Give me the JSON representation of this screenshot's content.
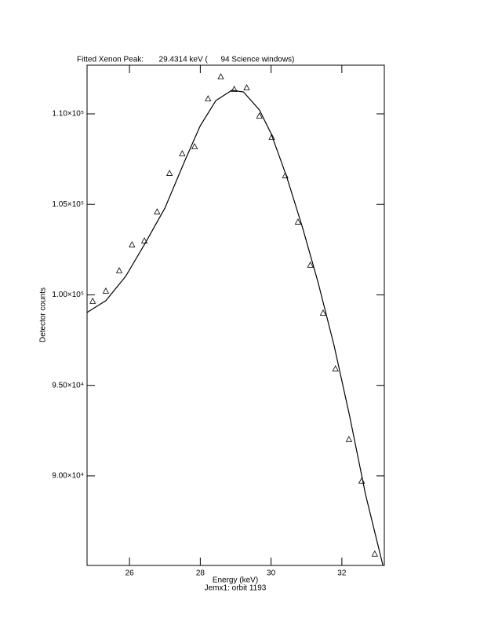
{
  "chart_data": {
    "type": "scatter",
    "title": "Fitted Xenon Peak:       29.4314 keV (      94 Science windows)",
    "xlabel": "Energy (keV)",
    "ylabel": "Detector counts",
    "annotation": "Jemx1: orbit 1193",
    "xlim": [
      24.8,
      33.2
    ],
    "ylim": [
      85050,
      112690
    ],
    "xticks": [
      26,
      28,
      30,
      32
    ],
    "yticks": [
      {
        "value": 90000,
        "label": "9.00×10⁴"
      },
      {
        "value": 95000,
        "label": "9.50×10⁴"
      },
      {
        "value": 100000,
        "label": "1.00×10⁵"
      },
      {
        "value": 105000,
        "label": "1.05×10⁵"
      },
      {
        "value": 110000,
        "label": "1.10×10⁵"
      }
    ],
    "color": "#000000",
    "series": [
      {
        "marker": "triangle",
        "x": [
          24.96,
          25.33,
          25.71,
          26.07,
          26.42,
          26.78,
          27.13,
          27.49,
          27.84,
          28.22,
          28.58,
          28.96,
          29.31,
          29.67,
          30.02,
          30.4,
          30.76,
          31.11,
          31.47,
          31.82,
          32.2,
          32.56,
          32.93
        ],
        "values": [
          99635,
          100198,
          101326,
          102757,
          102974,
          104579,
          106704,
          107788,
          108178,
          110824,
          112038,
          111344,
          111431,
          109870,
          108699,
          106574,
          104015,
          101630,
          98984,
          95905,
          92001,
          89703,
          85669
        ]
      },
      {
        "marker": "line",
        "x": [
          24.8,
          25.33,
          25.89,
          26.44,
          27.0,
          27.56,
          28.0,
          28.44,
          28.89,
          29.22,
          29.67,
          30.0,
          30.44,
          30.89,
          31.33,
          31.78,
          32.22,
          32.67,
          33.16
        ],
        "values": [
          99027,
          99678,
          101022,
          102844,
          104796,
          107398,
          109349,
          110737,
          111301,
          111214,
          110217,
          108916,
          106530,
          103711,
          100675,
          97206,
          93303,
          88966,
          85062
        ]
      }
    ]
  }
}
